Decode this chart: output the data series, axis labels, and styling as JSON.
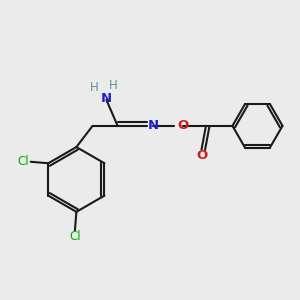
{
  "bg_color": "#ebebeb",
  "bond_color": "#1a1a1a",
  "N_color": "#2020cc",
  "O_color": "#cc2020",
  "Cl_color": "#00aa00",
  "H_color": "#6090a0",
  "line_width": 1.5,
  "figsize": [
    3.0,
    3.0
  ],
  "dpi": 100,
  "xlim": [
    0,
    10
  ],
  "ylim": [
    0,
    10
  ]
}
